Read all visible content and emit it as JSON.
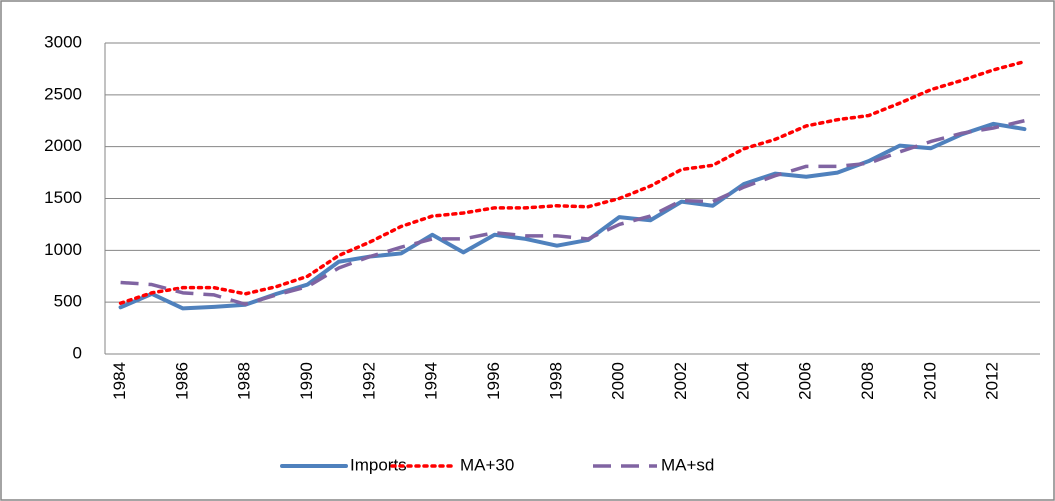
{
  "chart_data": {
    "type": "line",
    "categories": [
      "1984",
      null,
      "1986",
      null,
      "1988",
      null,
      "1990",
      null,
      "1992",
      null,
      "1994",
      null,
      "1996",
      null,
      "1998",
      null,
      "2000",
      null,
      "2002",
      null,
      "2004",
      null,
      "2006",
      null,
      "2008",
      null,
      "2010",
      null,
      "2012",
      null
    ],
    "series": [
      {
        "name": "Imports",
        "color": "#4f81bd",
        "style": "solid",
        "values": [
          450,
          580,
          440,
          455,
          475,
          580,
          670,
          890,
          940,
          970,
          1150,
          980,
          1150,
          1110,
          1045,
          1100,
          1320,
          1290,
          1470,
          1430,
          1640,
          1740,
          1710,
          1750,
          1860,
          2010,
          1985,
          2120,
          2220,
          2170
        ]
      },
      {
        "name": "MA+30",
        "color": "#ff0000",
        "style": "dotted",
        "values": [
          490,
          590,
          640,
          640,
          580,
          650,
          750,
          950,
          1080,
          1230,
          1330,
          1360,
          1410,
          1410,
          1430,
          1420,
          1500,
          1620,
          1780,
          1820,
          1980,
          2070,
          2200,
          2260,
          2300,
          2420,
          2550,
          2640,
          2740,
          2820
        ]
      },
      {
        "name": "MA+sd",
        "color": "#8064a2",
        "style": "dashed",
        "values": [
          690,
          670,
          590,
          570,
          480,
          570,
          650,
          830,
          940,
          1030,
          1110,
          1110,
          1170,
          1140,
          1140,
          1110,
          1250,
          1330,
          1480,
          1470,
          1610,
          1720,
          1810,
          1810,
          1840,
          1950,
          2050,
          2130,
          2180,
          2250
        ]
      }
    ],
    "ylim": [
      0,
      3000
    ],
    "yticks": [
      0,
      500,
      1000,
      1500,
      2000,
      2500,
      3000
    ],
    "grid": true,
    "legend": "bottom"
  }
}
